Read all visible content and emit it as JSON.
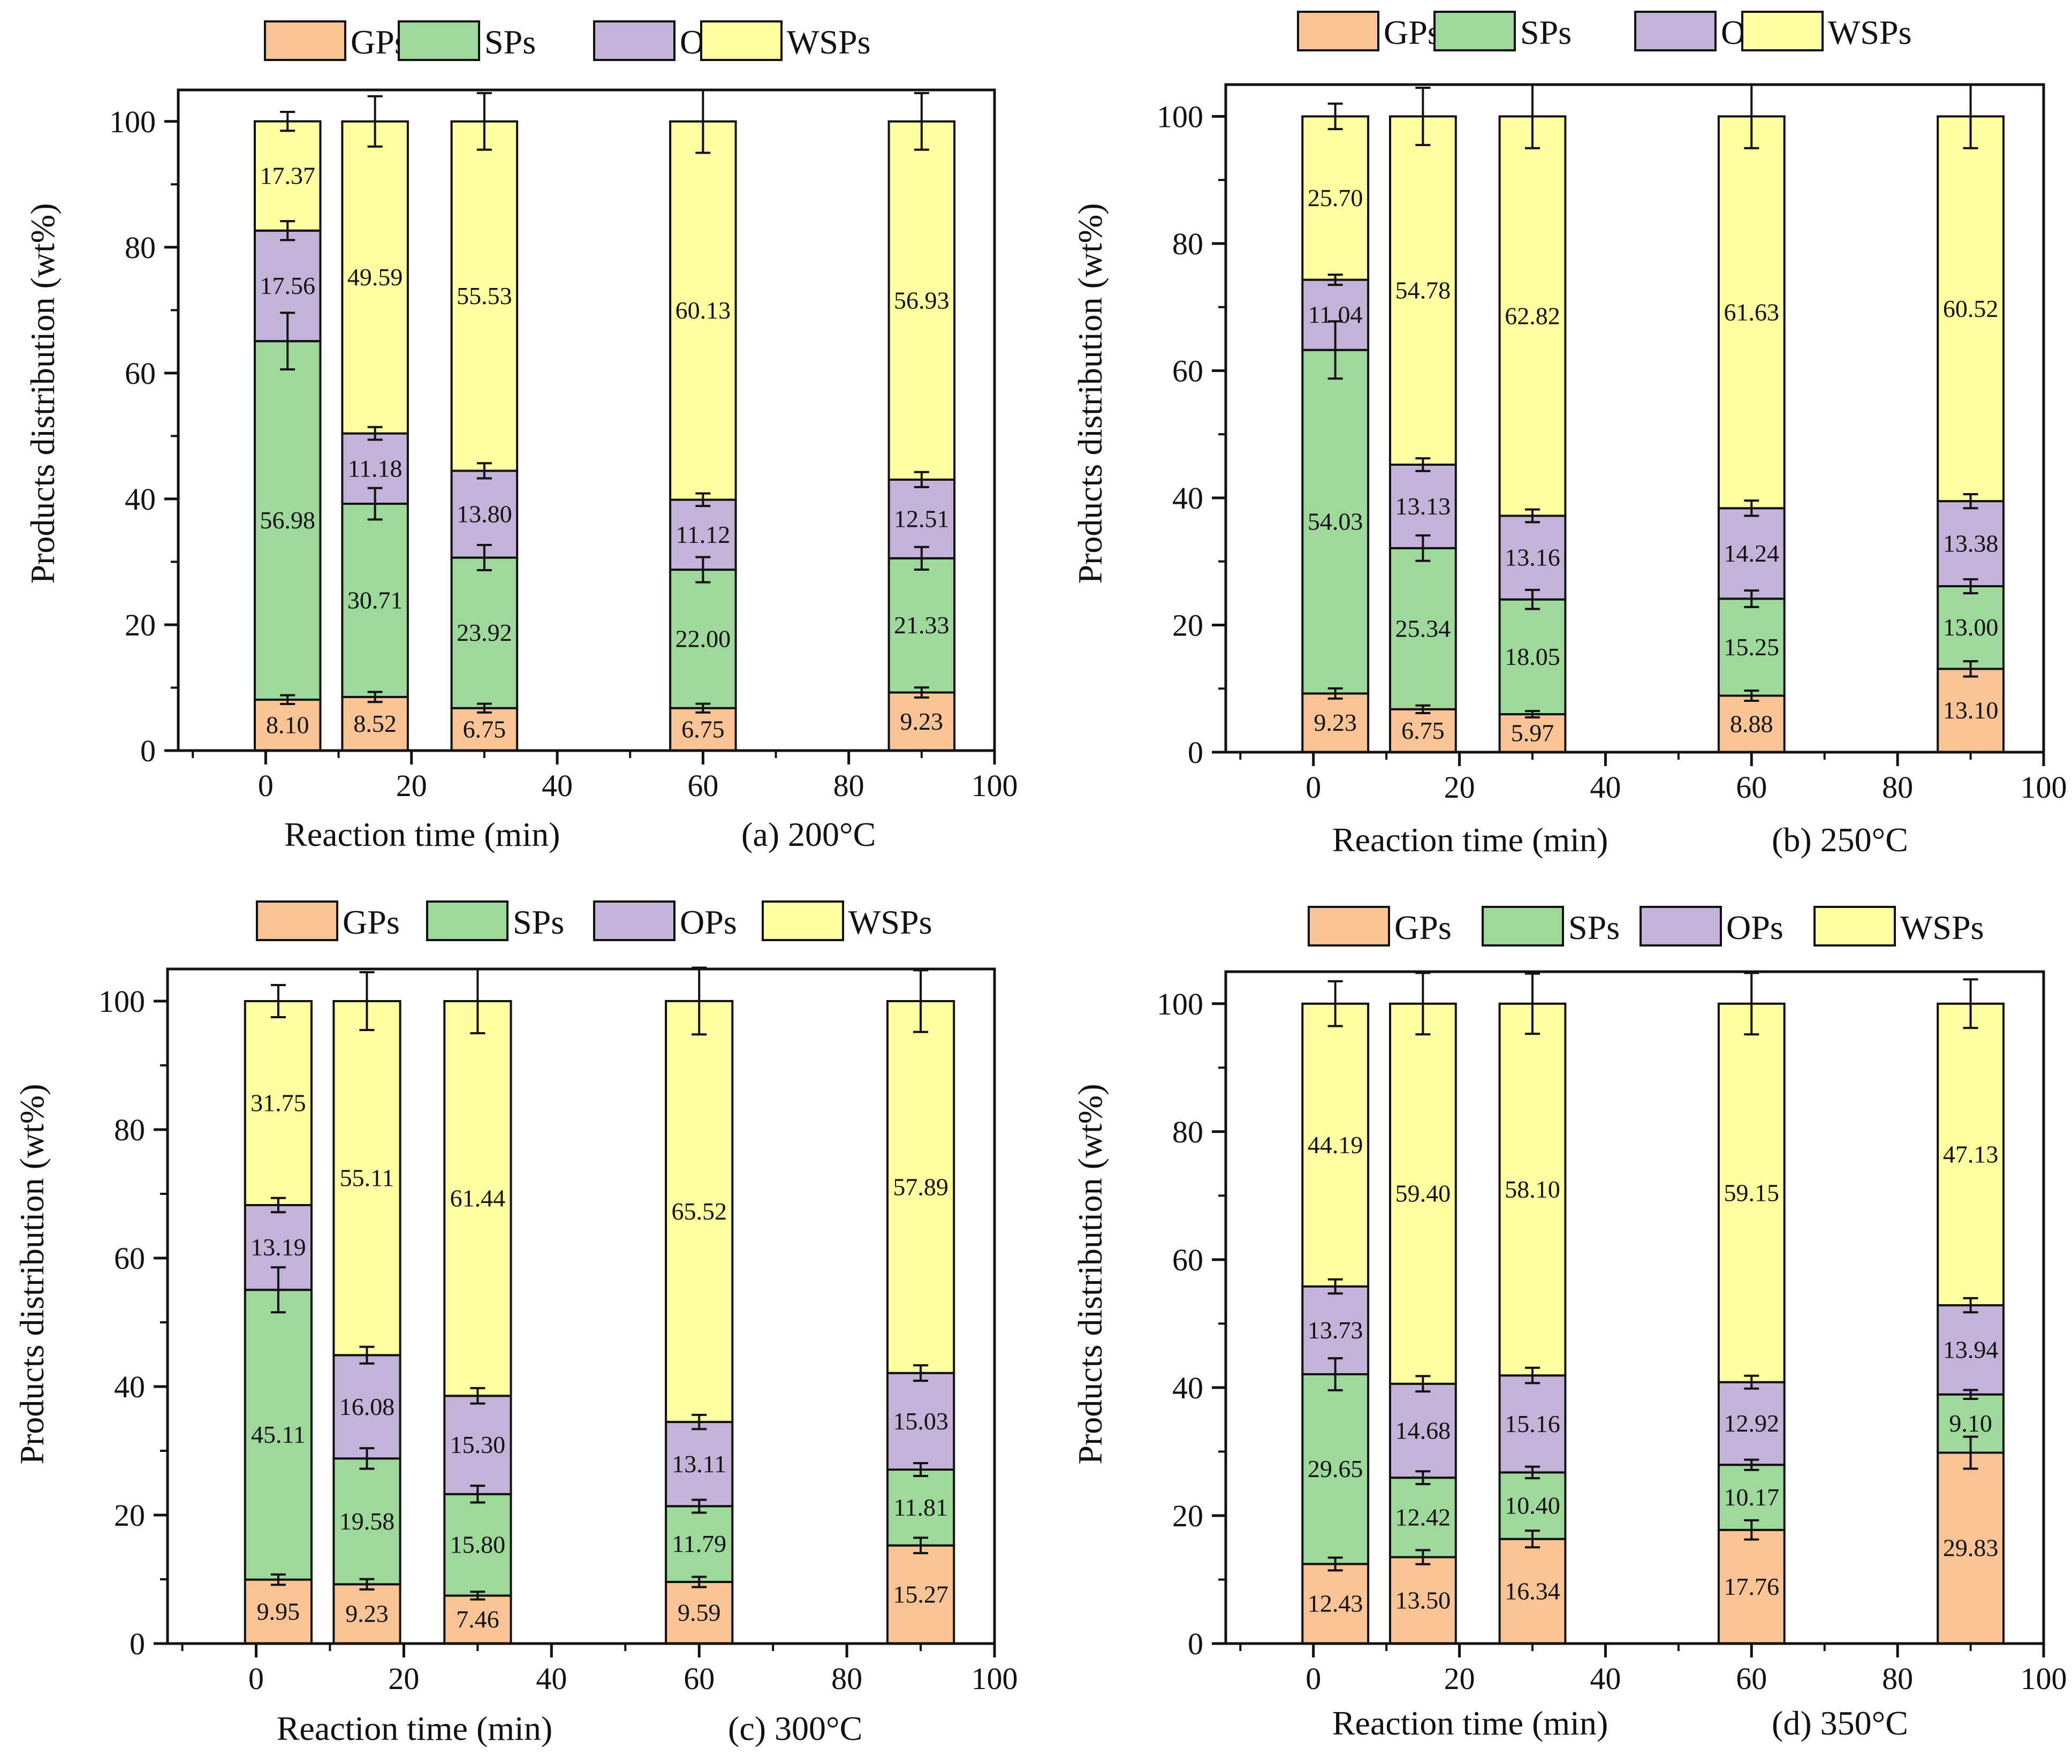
{
  "colors": {
    "GPs": "#F9C495",
    "SPs": "#9ED89B",
    "OPs": "#C4B3D8",
    "WSPs": "#FFFFA1",
    "axis": "#111111"
  },
  "shared": {
    "ylabel": "Products distribution (wt%)",
    "xlabel": "Reaction time (min)",
    "xlim": [
      -12,
      100
    ],
    "ylim": [
      0,
      105
    ],
    "xticks": [
      0,
      20,
      40,
      60,
      80,
      100
    ],
    "yticks": [
      0,
      20,
      40,
      60,
      80,
      100
    ],
    "categories_min": [
      3,
      15,
      30,
      60,
      90
    ],
    "bar_width_min": 9
  },
  "chart_data": [
    {
      "type": "bar",
      "stacked": true,
      "title": "(a) 200°C",
      "xlabel": "Reaction time (min)",
      "ylabel": "Products distribution (wt%)",
      "legend": [
        "GPs",
        "SPs",
        "OPs",
        "WSPs"
      ],
      "x": [
        3,
        15,
        30,
        60,
        90
      ],
      "series": [
        {
          "name": "GPs",
          "values": [
            8.1,
            8.52,
            6.75,
            6.75,
            9.23
          ],
          "labels": [
            "8.10",
            "8.52",
            "6.75",
            "6.75",
            "9.23"
          ],
          "errors": [
            0.7,
            0.8,
            0.7,
            0.7,
            0.8
          ]
        },
        {
          "name": "SPs",
          "values": [
            56.98,
            30.71,
            23.92,
            22.0,
            21.33
          ],
          "labels": [
            "56.98",
            "30.71",
            "23.92",
            "22.00",
            "21.33"
          ],
          "errors": [
            4.5,
            2.5,
            2.0,
            2.0,
            1.8
          ]
        },
        {
          "name": "OPs",
          "values": [
            17.56,
            11.18,
            13.8,
            11.12,
            12.51
          ],
          "labels": [
            "17.56",
            "11.18",
            "13.80",
            "11.12",
            "12.51"
          ],
          "errors": [
            1.5,
            1.0,
            1.2,
            1.0,
            1.2
          ]
        },
        {
          "name": "WSPs",
          "values": [
            17.37,
            49.59,
            55.53,
            60.13,
            56.93
          ],
          "labels": [
            "17.37",
            "49.59",
            "55.53",
            "60.13",
            "56.93"
          ],
          "errors": [
            1.5,
            4.0,
            4.5,
            5.0,
            4.5
          ]
        }
      ]
    },
    {
      "type": "bar",
      "stacked": true,
      "title": "(b) 250°C",
      "xlabel": "Reaction time (min)",
      "ylabel": "Products distribution (wt%)",
      "legend": [
        "GPs",
        "SPs",
        "OPs",
        "WSPs"
      ],
      "x": [
        3,
        15,
        30,
        60,
        90
      ],
      "series": [
        {
          "name": "GPs",
          "values": [
            9.23,
            6.75,
            5.97,
            8.88,
            13.1
          ],
          "labels": [
            "9.23",
            "6.75",
            "5.97",
            "8.88",
            "13.10"
          ],
          "errors": [
            0.8,
            0.6,
            0.5,
            0.8,
            1.2
          ]
        },
        {
          "name": "SPs",
          "values": [
            54.03,
            25.34,
            18.05,
            15.25,
            13.0
          ],
          "labels": [
            "54.03",
            "25.34",
            "18.05",
            "15.25",
            "13.00"
          ],
          "errors": [
            4.5,
            2.0,
            1.5,
            1.3,
            1.1
          ]
        },
        {
          "name": "OPs",
          "values": [
            11.04,
            13.13,
            13.16,
            14.24,
            13.38
          ],
          "labels": [
            "11.04",
            "13.13",
            "13.16",
            "14.24",
            "13.38"
          ],
          "errors": [
            0.8,
            1.0,
            1.0,
            1.2,
            1.1
          ]
        },
        {
          "name": "WSPs",
          "values": [
            25.7,
            54.78,
            62.82,
            61.63,
            60.52
          ],
          "labels": [
            "25.70",
            "54.78",
            "62.82",
            "61.63",
            "60.52"
          ],
          "errors": [
            2.0,
            4.5,
            5.0,
            5.0,
            5.0
          ]
        }
      ]
    },
    {
      "type": "bar",
      "stacked": true,
      "title": "(c) 300°C",
      "xlabel": "Reaction time (min)",
      "ylabel": "Products distribution (wt%)",
      "legend": [
        "GPs",
        "SPs",
        "OPs",
        "WSPs"
      ],
      "x": [
        3,
        15,
        30,
        60,
        90
      ],
      "series": [
        {
          "name": "GPs",
          "values": [
            9.95,
            9.23,
            7.46,
            9.59,
            15.27
          ],
          "labels": [
            "9.95",
            "9.23",
            "7.46",
            "9.59",
            "15.27"
          ],
          "errors": [
            0.8,
            0.8,
            0.6,
            0.8,
            1.2
          ]
        },
        {
          "name": "SPs",
          "values": [
            45.11,
            19.58,
            15.8,
            11.79,
            11.81
          ],
          "labels": [
            "45.11",
            "19.58",
            "15.80",
            "11.79",
            "11.81"
          ],
          "errors": [
            3.5,
            1.6,
            1.3,
            1.0,
            1.0
          ]
        },
        {
          "name": "OPs",
          "values": [
            13.19,
            16.08,
            15.3,
            13.11,
            15.03
          ],
          "labels": [
            "13.19",
            "16.08",
            "15.30",
            "13.11",
            "15.03"
          ],
          "errors": [
            1.1,
            1.3,
            1.2,
            1.1,
            1.2
          ]
        },
        {
          "name": "WSPs",
          "values": [
            31.75,
            55.11,
            61.44,
            65.52,
            57.89
          ],
          "labels": [
            "31.75",
            "55.11",
            "61.44",
            "65.52",
            "57.89"
          ],
          "errors": [
            2.5,
            4.5,
            5.0,
            5.2,
            4.8
          ]
        }
      ]
    },
    {
      "type": "bar",
      "stacked": true,
      "title": "(d) 350°C",
      "xlabel": "Reaction time (min)",
      "ylabel": "Products distribution (wt%)",
      "legend": [
        "GPs",
        "SPs",
        "OPs",
        "WSPs"
      ],
      "x": [
        3,
        15,
        30,
        60,
        90
      ],
      "series": [
        {
          "name": "GPs",
          "values": [
            12.43,
            13.5,
            16.34,
            17.76,
            29.83
          ],
          "labels": [
            "12.43",
            "13.50",
            "16.34",
            "17.76",
            "29.83"
          ],
          "errors": [
            1.0,
            1.1,
            1.3,
            1.5,
            2.5
          ]
        },
        {
          "name": "SPs",
          "values": [
            29.65,
            12.42,
            10.4,
            10.17,
            9.1
          ],
          "labels": [
            "29.65",
            "12.42",
            "10.40",
            "10.17",
            "9.10"
          ],
          "errors": [
            2.5,
            1.0,
            0.9,
            0.8,
            0.7
          ]
        },
        {
          "name": "OPs",
          "values": [
            13.73,
            14.68,
            15.16,
            12.92,
            13.94
          ],
          "labels": [
            "13.73",
            "14.68",
            "15.16",
            "12.92",
            "13.94"
          ],
          "errors": [
            1.1,
            1.2,
            1.2,
            1.0,
            1.1
          ]
        },
        {
          "name": "WSPs",
          "values": [
            44.19,
            59.4,
            58.1,
            59.15,
            47.13
          ],
          "labels": [
            "44.19",
            "59.40",
            "58.10",
            "59.15",
            "47.13"
          ],
          "errors": [
            3.5,
            4.8,
            4.7,
            4.8,
            3.8
          ]
        }
      ]
    }
  ]
}
